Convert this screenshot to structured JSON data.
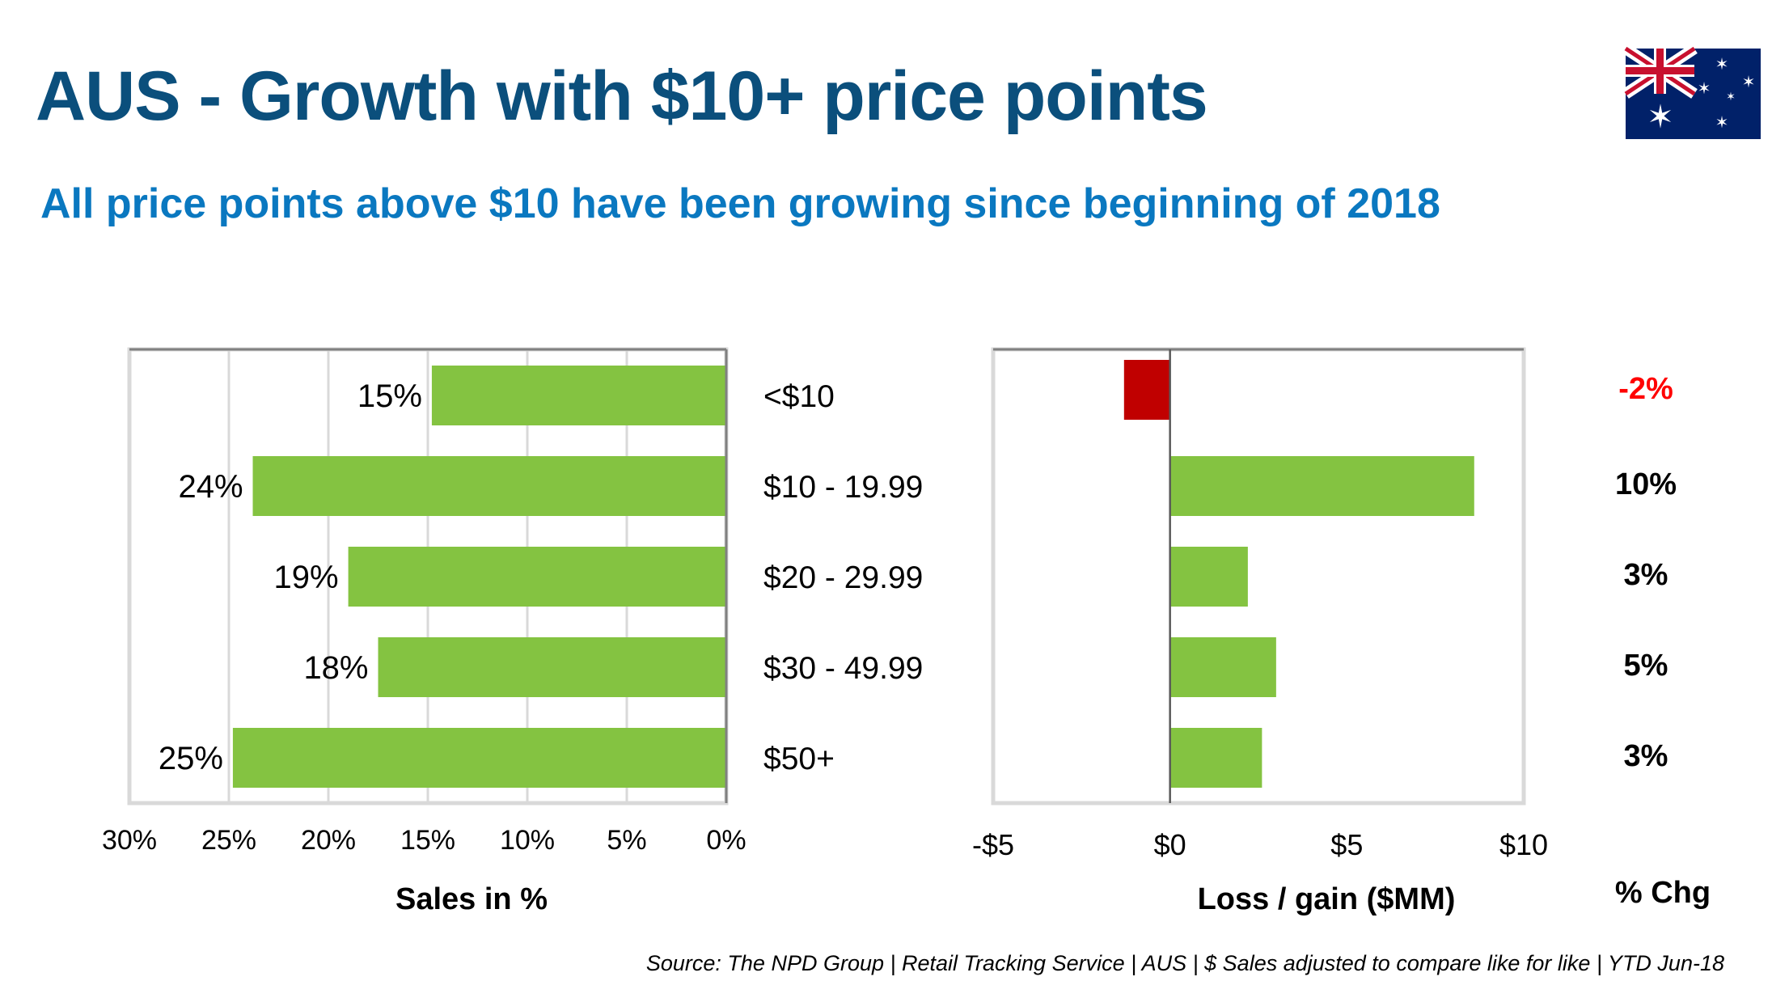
{
  "header": {
    "title": "AUS - Growth with $10+ price points",
    "subtitle": "All price points above $10 have been growing since beginning of 2018",
    "flag_icon": "australia-flag"
  },
  "footer": {
    "source": "Source: The NPD Group | Retail  Tracking Service | AUS | $ Sales adjusted to compare like for like |  YTD Jun-18"
  },
  "colors": {
    "bar_positive": "#84c341",
    "bar_negative": "#c00000",
    "pct_negative": "#ff0000",
    "title": "#0b4f7c",
    "subtitle": "#0a78c0"
  },
  "chart_data": [
    {
      "type": "bar",
      "orientation": "horizontal-reversed",
      "categories": [
        "<$10",
        "$10 - 19.99",
        "$20 - 29.99",
        "$30 - 49.99",
        "$50+"
      ],
      "values": [
        14.8,
        23.8,
        19,
        17.5,
        24.8
      ],
      "data_labels": [
        "15%",
        "24%",
        "19%",
        "18%",
        "25%"
      ],
      "xlabel": "Sales in %",
      "xlim": [
        30,
        0
      ],
      "xticks": [
        "30%",
        "25%",
        "20%",
        "15%",
        "10%",
        "5%",
        "0%"
      ],
      "xtick_values": [
        30,
        25,
        20,
        15,
        10,
        5,
        0
      ],
      "grid": true
    },
    {
      "type": "bar",
      "orientation": "horizontal",
      "categories": [
        "<$10",
        "$10 - 19.99",
        "$20 - 29.99",
        "$30 - 49.99",
        "$50+"
      ],
      "values": [
        -1.3,
        8.6,
        2.2,
        3.0,
        2.6
      ],
      "xlabel": "Loss / gain ($MM)",
      "xlim": [
        -5,
        10
      ],
      "xticks": [
        "-$5",
        "$0",
        "$5",
        "$10"
      ],
      "xtick_values": [
        -5,
        0,
        5,
        10
      ],
      "grid": false,
      "pct_chg_header": "% Chg",
      "pct_chg": [
        "-2%",
        "10%",
        "3%",
        "5%",
        "3%"
      ]
    }
  ]
}
